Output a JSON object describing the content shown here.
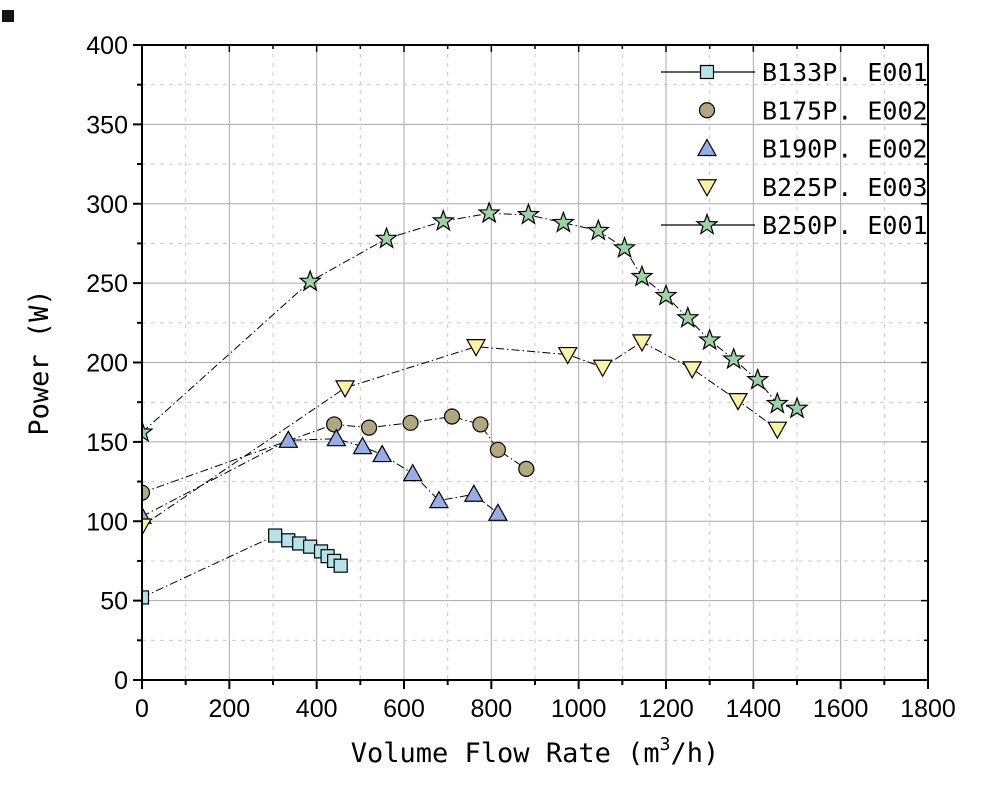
{
  "figure": {
    "background": "#ffffff",
    "text_color": "#000000"
  },
  "chart_data": {
    "type": "line",
    "title": "",
    "xlabel": "Volume Flow Rate (m³/h)",
    "ylabel": "Power (W)",
    "xlim": [
      0,
      1800
    ],
    "ylim": [
      0,
      400
    ],
    "x_major_step": 200,
    "x_minor_step": 100,
    "y_major_step": 50,
    "y_minor_step": 25,
    "grid": {
      "major": true,
      "minor": true,
      "major_color": "#ababab",
      "minor_color": "#cccccc"
    },
    "legend_position": "top-right",
    "line_color": "#000000",
    "series": [
      {
        "name": "B133P. E001",
        "marker": "square",
        "color": "#b5e3ea",
        "legend_line": true,
        "points": [
          [
            0,
            52
          ],
          [
            305,
            91
          ],
          [
            335,
            88
          ],
          [
            360,
            86
          ],
          [
            385,
            84
          ],
          [
            410,
            81
          ],
          [
            425,
            78
          ],
          [
            440,
            75
          ],
          [
            455,
            72
          ]
        ]
      },
      {
        "name": "B175P. E002",
        "marker": "circle",
        "color": "#b0a87e",
        "legend_line": false,
        "points": [
          [
            0,
            118
          ],
          [
            440,
            161
          ],
          [
            520,
            159
          ],
          [
            615,
            162
          ],
          [
            710,
            166
          ],
          [
            775,
            161
          ],
          [
            815,
            145
          ],
          [
            880,
            133
          ]
        ]
      },
      {
        "name": "B190P. E002",
        "marker": "triangle-up",
        "color": "#98ade8",
        "legend_line": false,
        "points": [
          [
            0,
            103
          ],
          [
            335,
            151
          ],
          [
            445,
            152
          ],
          [
            505,
            147
          ],
          [
            550,
            142
          ],
          [
            620,
            130
          ],
          [
            680,
            113
          ],
          [
            760,
            117
          ],
          [
            815,
            105
          ]
        ]
      },
      {
        "name": "B225P. E003",
        "marker": "triangle-down",
        "color": "#f9f3a2",
        "legend_line": false,
        "points": [
          [
            0,
            97
          ],
          [
            465,
            184
          ],
          [
            765,
            210
          ],
          [
            975,
            205
          ],
          [
            1055,
            197
          ],
          [
            1145,
            213
          ],
          [
            1260,
            196
          ],
          [
            1365,
            176
          ],
          [
            1455,
            158
          ]
        ]
      },
      {
        "name": "B250P. E001",
        "marker": "star",
        "color": "#9cd3a3",
        "legend_line": true,
        "points": [
          [
            0,
            156
          ],
          [
            385,
            251
          ],
          [
            560,
            278
          ],
          [
            690,
            289
          ],
          [
            795,
            294
          ],
          [
            885,
            293
          ],
          [
            965,
            288
          ],
          [
            1045,
            283
          ],
          [
            1105,
            272
          ],
          [
            1145,
            254
          ],
          [
            1200,
            242
          ],
          [
            1250,
            228
          ],
          [
            1300,
            214
          ],
          [
            1355,
            202
          ],
          [
            1410,
            189
          ],
          [
            1455,
            174
          ],
          [
            1500,
            171
          ]
        ]
      }
    ]
  }
}
